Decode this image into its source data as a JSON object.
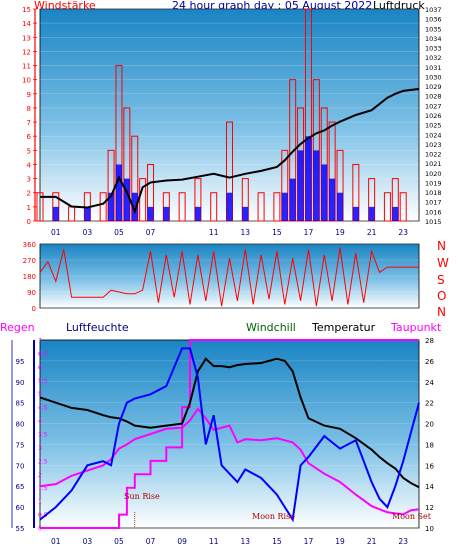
{
  "header": {
    "left_label": "Windstärke",
    "title": "24 hour graph day : 05 August 2022",
    "right_label": "Luftdruck"
  },
  "wind_direction_letters": [
    "N",
    "W",
    "S",
    "O",
    "N"
  ],
  "lower_labels": {
    "rain": "Regen",
    "humidity": "Luftfeuchte",
    "windchill": "Windchill",
    "temperature": "Temperatur",
    "dewpoint": "Taupunkt"
  },
  "annotations": {
    "sun_rise": "Sun Rise",
    "moon_rise": "Moon Rise",
    "moon_set": "Moon Set"
  },
  "colors": {
    "wind": "#ff0000",
    "wind_avg": "#0000ff",
    "pressure": "#000000",
    "direction": "#ff0000",
    "humidity": "#0000ff",
    "temperature": "#000000",
    "windchill": "#006600",
    "dewpoint": "#ff00ff",
    "rain": "#ff00ff",
    "accent_text": "#000080",
    "sun_moon": "#aa0000"
  },
  "chart_data": [
    {
      "type": "bar",
      "panel": "wind-pressure",
      "xlabel": "",
      "x_ticks": [
        "01",
        "03",
        "05",
        "07",
        "11",
        "13",
        "15",
        "17",
        "19",
        "21",
        "23"
      ],
      "ylabel_left": "Windstärke",
      "ylim_left": [
        0,
        15
      ],
      "y_ticks_left": [
        0,
        1,
        2,
        3,
        4,
        5,
        6,
        7,
        8,
        9,
        10,
        11,
        12,
        13,
        14,
        15
      ],
      "ylabel_right": "Luftdruck",
      "ylim_right": [
        1015,
        1037
      ],
      "y_ticks_right": [
        1015,
        1016,
        1017,
        1018,
        1019,
        1020,
        1021,
        1022,
        1023,
        1024,
        1025,
        1026,
        1027,
        1028,
        1029,
        1030,
        1031,
        1032,
        1033,
        1034,
        1035,
        1036,
        1037
      ],
      "x_hours": [
        0,
        1,
        2,
        3,
        4,
        4.5,
        5,
        5.5,
        6,
        6.5,
        7,
        8,
        9,
        10,
        11,
        12,
        13,
        14,
        15,
        15.5,
        16,
        16.5,
        17,
        17.5,
        18,
        18.5,
        19,
        20,
        21,
        22,
        22.5,
        23,
        23.5,
        24
      ],
      "series": [
        {
          "name": "Windstärke",
          "kind": "gust",
          "values": [
            2,
            2,
            1,
            2,
            2,
            5,
            11,
            8,
            6,
            3,
            4,
            2,
            2,
            3,
            2,
            7,
            3,
            2,
            2,
            5,
            10,
            8,
            15,
            10,
            8,
            7,
            5,
            4,
            3,
            2,
            3,
            2,
            0,
            0
          ]
        },
        {
          "name": "Windstärke",
          "kind": "average",
          "values": [
            0,
            1,
            0,
            1,
            0,
            2,
            4,
            3,
            2,
            0,
            1,
            1,
            0,
            1,
            0,
            2,
            1,
            0,
            0,
            2,
            3,
            5,
            6,
            5,
            4,
            3,
            2,
            1,
            1,
            0,
            1,
            0,
            0,
            0
          ]
        },
        {
          "name": "Luftdruck",
          "kind": "pressure",
          "values": [
            1017.5,
            1017.5,
            1016.5,
            1016.4,
            1016.8,
            1017.6,
            1019.5,
            1018,
            1016,
            1018.5,
            1019,
            1019.2,
            1019.3,
            1019.6,
            1019.9,
            1019.5,
            1019.9,
            1020.2,
            1020.6,
            1021.3,
            1022.2,
            1023,
            1023.6,
            1024.1,
            1024.4,
            1024.9,
            1025.3,
            1026,
            1026.5,
            1027.8,
            1028.2,
            1028.5,
            1028.6,
            1028.7
          ]
        }
      ]
    },
    {
      "type": "line",
      "panel": "wind-direction",
      "ylabel": "",
      "ylim": [
        0,
        360
      ],
      "y_ticks": [
        0,
        90,
        180,
        270,
        360
      ],
      "x_hours": [
        0,
        0.5,
        1,
        1.5,
        2,
        2.5,
        3,
        3.5,
        4,
        4.5,
        5,
        5.5,
        6,
        6.5,
        7,
        7.5,
        8,
        8.5,
        9,
        9.5,
        10,
        10.5,
        11,
        11.5,
        12,
        12.5,
        13,
        13.5,
        14,
        14.5,
        15,
        15.5,
        16,
        16.5,
        17,
        17.5,
        18,
        18.5,
        19,
        19.5,
        20,
        20.5,
        21,
        21.5,
        22,
        22.5,
        23,
        23.5,
        24
      ],
      "series": [
        {
          "name": "",
          "values": [
            200,
            260,
            150,
            330,
            60,
            60,
            60,
            60,
            60,
            100,
            90,
            80,
            80,
            100,
            320,
            30,
            300,
            60,
            320,
            20,
            300,
            40,
            320,
            10,
            280,
            40,
            330,
            20,
            300,
            50,
            320,
            20,
            280,
            40,
            330,
            10,
            300,
            40,
            340,
            20,
            310,
            30,
            320,
            200,
            230,
            230,
            230,
            230,
            230
          ]
        }
      ]
    },
    {
      "type": "line",
      "panel": "humidity-temperature",
      "x_ticks": [
        "01",
        "03",
        "05",
        "07",
        "09",
        "11",
        "13",
        "15",
        "17",
        "19",
        "21",
        "23"
      ],
      "ylabel_left": "Luftfeuchte",
      "ylim_left": [
        55,
        100
      ],
      "y_ticks_left": [
        55,
        60,
        65,
        70,
        75,
        80,
        85,
        90,
        95
      ],
      "ylabel_rain": "Regen",
      "ylim_rain": [
        0,
        7
      ],
      "y_ticks_rain": [
        0,
        0.5,
        1,
        1.5,
        2,
        2.5,
        3,
        3.5,
        4,
        4.5,
        5,
        5.5,
        6,
        6.5,
        7
      ],
      "ylabel_right": "Temperatur",
      "ylim_right": [
        10,
        28
      ],
      "y_ticks_right": [
        10,
        12,
        14,
        16,
        18,
        20,
        22,
        24,
        26,
        28
      ],
      "x_hours": [
        0,
        1,
        2,
        3,
        4,
        4.5,
        5,
        5.5,
        6,
        7,
        8,
        9,
        9.5,
        10,
        10.5,
        11,
        11.5,
        12,
        12.5,
        13,
        14,
        15,
        15.5,
        16,
        16.5,
        17,
        18,
        19,
        20,
        21,
        21.5,
        22,
        22.5,
        23,
        23.5,
        24
      ],
      "series": [
        {
          "name": "Luftfeuchte",
          "values": [
            57,
            60,
            64,
            70,
            71,
            70,
            80,
            85,
            86,
            87,
            89,
            98,
            98,
            91,
            75,
            82,
            70,
            68,
            66,
            69,
            67,
            63,
            60,
            57,
            70,
            72,
            77,
            74,
            76,
            66,
            62,
            60,
            65,
            71,
            78,
            85
          ]
        },
        {
          "name": "Temperatur",
          "values": [
            22.5,
            22,
            21.5,
            21.3,
            20.8,
            20.6,
            20.5,
            20.2,
            19.8,
            19.6,
            19.8,
            20,
            22,
            25,
            26.2,
            25.5,
            25.5,
            25.4,
            25.6,
            25.7,
            25.8,
            26.2,
            26,
            25,
            22.5,
            20.5,
            19.8,
            19.5,
            18.6,
            17.5,
            16.8,
            16.2,
            15.7,
            14.8,
            14.3,
            13.9
          ]
        },
        {
          "name": "Taupunkt",
          "values": [
            14,
            14.2,
            15,
            15.5,
            16,
            16.6,
            17.6,
            18,
            18.5,
            19,
            19.5,
            19.6,
            20.3,
            21.4,
            20.5,
            19.4,
            19.6,
            19.8,
            18.2,
            18.5,
            18.4,
            18.6,
            18.4,
            18.2,
            17.5,
            16.2,
            15.2,
            14.4,
            13.2,
            12.1,
            11.8,
            11.5,
            11.4,
            11.3,
            11.7,
            11.8
          ]
        },
        {
          "name": "Regen",
          "values": [
            0,
            0,
            0,
            0,
            0,
            0,
            0.5,
            1.5,
            2,
            2.5,
            3,
            4.5,
            7,
            7,
            7,
            7,
            7,
            7,
            7,
            7,
            7,
            7,
            7,
            7,
            7,
            7,
            7,
            7,
            7,
            7,
            7,
            7,
            7,
            7,
            7,
            7
          ]
        }
      ]
    }
  ]
}
